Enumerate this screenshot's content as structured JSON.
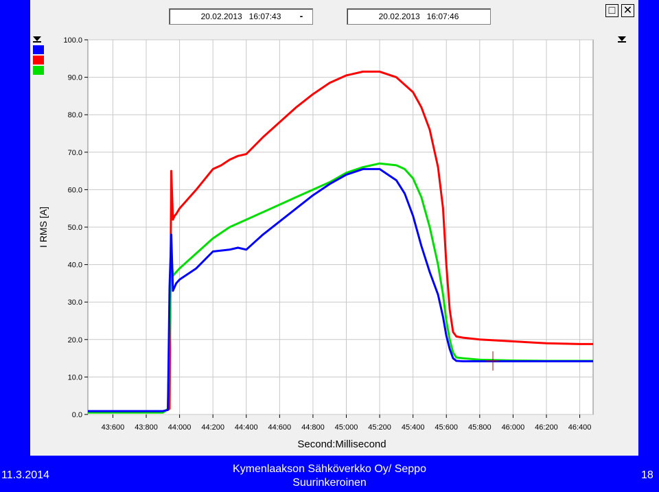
{
  "header": {
    "start_time": "20.02.2013   16:07:43",
    "separator": "-",
    "end_time": "20.02.2013   16:07:46"
  },
  "window_controls": {
    "restore_symbol": "□",
    "close_symbol": "✕"
  },
  "legend_colors": [
    "#0000ff",
    "#ff0000",
    "#00dd00"
  ],
  "footer": {
    "date": "11.3.2014",
    "organization": "Kymenlaakson Sähköverkko Oy/ Seppo Suurinkeroinen",
    "page_number": "18"
  },
  "chart_data": {
    "type": "line",
    "ylabel": "I RMS [A]",
    "xlabel": "Second:Millisecond",
    "ylim": [
      0,
      100
    ],
    "xlim": [
      43.45,
      46.48
    ],
    "y_ticks": [
      0,
      10,
      20,
      30,
      40,
      50,
      60,
      70,
      80,
      90,
      100
    ],
    "y_tick_labels": [
      "0.0",
      "10.0",
      "20.0",
      "30.0",
      "40.0",
      "50.0",
      "60.0",
      "70.0",
      "80.0",
      "90.0",
      "100.0"
    ],
    "x_ticks": [
      43.6,
      43.8,
      44.0,
      44.2,
      44.4,
      44.6,
      44.8,
      45.0,
      45.2,
      45.4,
      45.6,
      45.8,
      46.0,
      46.2,
      46.4
    ],
    "x_tick_labels": [
      "43:600",
      "43:800",
      "44:000",
      "44:200",
      "44:400",
      "44:600",
      "44:800",
      "45:000",
      "45:200",
      "45:400",
      "45:600",
      "45:800",
      "46:000",
      "46:200",
      "46:400"
    ],
    "grid": true,
    "series": [
      {
        "color": "#ff0000",
        "x": [
          43.45,
          43.9,
          43.94,
          43.95,
          43.96,
          43.97,
          43.98,
          44.0,
          44.1,
          44.2,
          44.25,
          44.3,
          44.35,
          44.4,
          44.5,
          44.6,
          44.7,
          44.8,
          44.9,
          45.0,
          45.1,
          45.2,
          45.3,
          45.4,
          45.45,
          45.5,
          45.55,
          45.58,
          45.6,
          45.62,
          45.64,
          45.66,
          45.7,
          45.8,
          46.0,
          46.2,
          46.4,
          46.48
        ],
        "values": [
          0.7,
          0.7,
          1.5,
          65,
          52,
          53,
          53.5,
          55,
          60,
          65.5,
          66.5,
          68,
          69,
          69.5,
          74,
          78,
          82,
          85.5,
          88.5,
          90.5,
          91.5,
          91.5,
          90,
          86,
          82,
          76,
          66,
          55,
          40,
          28,
          22,
          20.8,
          20.5,
          20,
          19.5,
          19,
          18.8,
          18.8
        ]
      },
      {
        "color": "#00dd00",
        "x": [
          43.45,
          43.9,
          43.93,
          43.95,
          43.96,
          43.98,
          44.0,
          44.1,
          44.2,
          44.3,
          44.4,
          44.5,
          44.6,
          44.7,
          44.8,
          44.9,
          45.0,
          45.1,
          45.2,
          45.3,
          45.35,
          45.4,
          45.45,
          45.5,
          45.55,
          45.58,
          45.6,
          45.62,
          45.64,
          45.66,
          45.7,
          45.8,
          46.0,
          46.2,
          46.4,
          46.48
        ],
        "values": [
          0.5,
          0.5,
          1.5,
          43,
          37,
          38,
          39,
          43,
          47,
          50,
          52,
          54,
          56,
          58,
          60,
          62,
          64.5,
          66,
          67,
          66.5,
          65.5,
          63,
          58,
          50,
          40,
          32,
          25,
          20,
          16.5,
          15.2,
          15,
          14.6,
          14.4,
          14.3,
          14.3,
          14.3
        ]
      },
      {
        "color": "#0000ff",
        "x": [
          43.45,
          43.9,
          43.93,
          43.94,
          43.95,
          43.96,
          43.98,
          44.0,
          44.1,
          44.2,
          44.3,
          44.35,
          44.4,
          44.45,
          44.5,
          44.6,
          44.7,
          44.8,
          44.9,
          45.0,
          45.1,
          45.2,
          45.3,
          45.35,
          45.4,
          45.45,
          45.5,
          45.55,
          45.58,
          45.6,
          45.62,
          45.64,
          45.66,
          45.7,
          45.8,
          46.0,
          46.2,
          46.4,
          46.48
        ],
        "values": [
          0.9,
          0.9,
          1.2,
          34,
          48,
          33,
          35,
          36,
          39,
          43.5,
          44,
          44.5,
          44,
          46,
          48,
          51.5,
          55,
          58.5,
          61.5,
          64,
          65.5,
          65.5,
          62.5,
          59,
          53,
          45,
          38,
          32,
          26,
          21,
          17.5,
          15,
          14.3,
          14.2,
          14.2,
          14.2,
          14.2,
          14.2,
          14.2
        ]
      }
    ]
  }
}
